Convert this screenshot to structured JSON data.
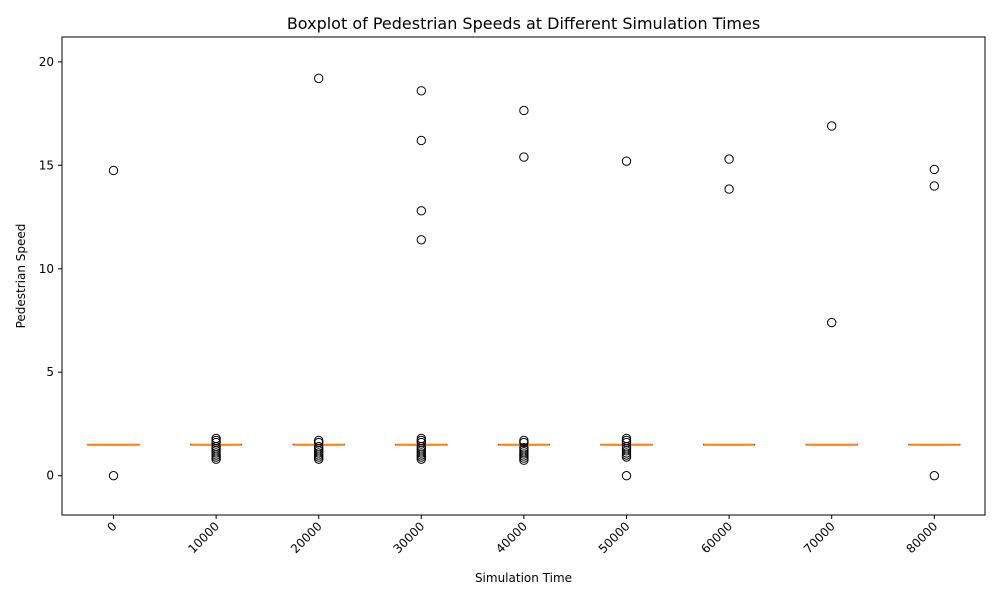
{
  "chart_data": {
    "type": "boxplot",
    "title": "Boxplot of Pedestrian Speeds at Different Simulation Times",
    "xlabel": "Simulation Time",
    "ylabel": "Pedestrian Speed",
    "categories": [
      "0",
      "10000",
      "20000",
      "30000",
      "40000",
      "50000",
      "60000",
      "70000",
      "80000"
    ],
    "ylim": [
      -1.9,
      21.2
    ],
    "yticks": [
      0,
      5,
      10,
      15,
      20
    ],
    "grid": false,
    "x_tick_rotation": 45,
    "box_color": "#000000",
    "median_color": "#ff7f0e",
    "boxes": [
      {
        "label": "0",
        "q1": 1.5,
        "median": 1.5,
        "q3": 1.5,
        "whisker_low": 1.5,
        "whisker_high": 1.5,
        "outliers": [
          14.75,
          0.0
        ]
      },
      {
        "label": "10000",
        "q1": 1.5,
        "median": 1.5,
        "q3": 1.5,
        "whisker_low": 1.5,
        "whisker_high": 1.5,
        "outliers": [
          0.8,
          0.9,
          1.0,
          1.1,
          1.2,
          1.3,
          1.4,
          1.6,
          1.7,
          1.8
        ]
      },
      {
        "label": "20000",
        "q1": 1.5,
        "median": 1.5,
        "q3": 1.5,
        "whisker_low": 1.5,
        "whisker_high": 1.5,
        "outliers": [
          19.2,
          0.8,
          0.9,
          1.0,
          1.1,
          1.2,
          1.3,
          1.4,
          1.6,
          1.7
        ]
      },
      {
        "label": "30000",
        "q1": 1.5,
        "median": 1.5,
        "q3": 1.5,
        "whisker_low": 1.5,
        "whisker_high": 1.5,
        "outliers": [
          18.6,
          16.2,
          12.8,
          11.4,
          0.8,
          0.9,
          1.0,
          1.1,
          1.2,
          1.3,
          1.4,
          1.6,
          1.7,
          1.8
        ]
      },
      {
        "label": "40000",
        "q1": 1.5,
        "median": 1.5,
        "q3": 1.5,
        "whisker_low": 1.5,
        "whisker_high": 1.5,
        "outliers": [
          17.65,
          15.4,
          0.75,
          0.85,
          0.95,
          1.05,
          1.15,
          1.25,
          1.35,
          1.6,
          1.7
        ]
      },
      {
        "label": "50000",
        "q1": 1.5,
        "median": 1.5,
        "q3": 1.5,
        "whisker_low": 1.5,
        "whisker_high": 1.5,
        "outliers": [
          15.2,
          0.0,
          0.9,
          1.0,
          1.1,
          1.2,
          1.3,
          1.4,
          1.6,
          1.7,
          1.8
        ]
      },
      {
        "label": "60000",
        "q1": 1.5,
        "median": 1.5,
        "q3": 1.5,
        "whisker_low": 1.5,
        "whisker_high": 1.5,
        "outliers": [
          15.3,
          13.85
        ]
      },
      {
        "label": "70000",
        "q1": 1.5,
        "median": 1.5,
        "q3": 1.5,
        "whisker_low": 1.5,
        "whisker_high": 1.5,
        "outliers": [
          16.9,
          7.4
        ]
      },
      {
        "label": "80000",
        "q1": 1.5,
        "median": 1.5,
        "q3": 1.5,
        "whisker_low": 1.5,
        "whisker_high": 1.5,
        "outliers": [
          14.8,
          14.0,
          0.0
        ]
      }
    ]
  }
}
